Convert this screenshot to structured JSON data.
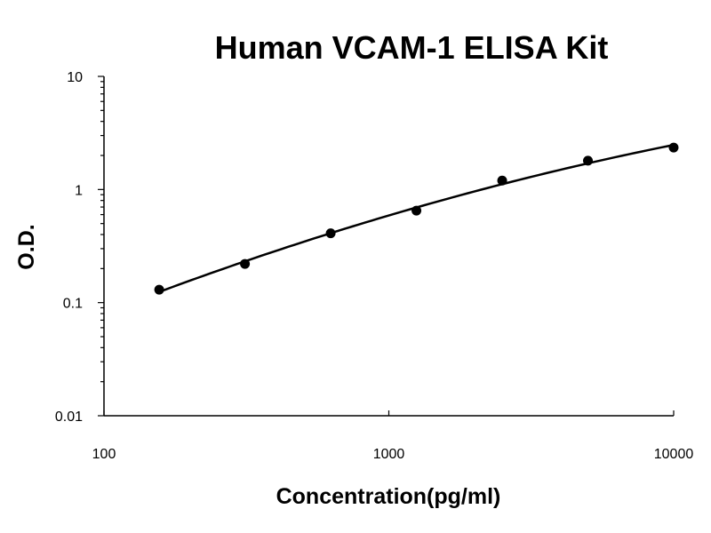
{
  "chart_data": {
    "type": "scatter",
    "title": "Human VCAM-1 ELISA Kit",
    "xlabel": "Concentration(pg/ml)",
    "ylabel": "O.D.",
    "x_scale": "log",
    "y_scale": "log",
    "xlim": [
      100,
      10000
    ],
    "ylim": [
      0.01,
      10
    ],
    "x_ticks": [
      "100",
      "1000",
      "10000"
    ],
    "y_ticks": [
      "0.01",
      "0.1",
      "1",
      "10"
    ],
    "grid": false,
    "legend": "none",
    "series": [
      {
        "x": [
          156.25,
          312.5,
          625,
          1250,
          2500,
          5000,
          10000
        ],
        "y": [
          0.13,
          0.22,
          0.41,
          0.65,
          1.2,
          1.8,
          2.35
        ],
        "color": "#000000",
        "fit_line": true
      }
    ]
  }
}
